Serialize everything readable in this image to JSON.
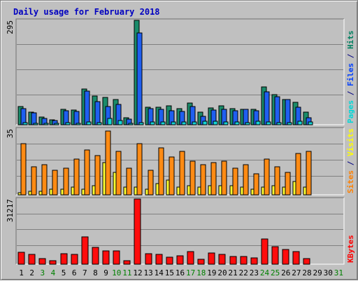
{
  "chart_data": {
    "type": "bar",
    "title": "Daily usage for February 2018",
    "categories": [
      "1",
      "2",
      "3",
      "4",
      "5",
      "6",
      "7",
      "8",
      "9",
      "10",
      "11",
      "12",
      "13",
      "14",
      "15",
      "16",
      "17",
      "18",
      "19",
      "20",
      "21",
      "22",
      "23",
      "24",
      "25",
      "26",
      "27",
      "28",
      "29",
      "30",
      "31"
    ],
    "weekend_days": [
      "3",
      "4",
      "10",
      "11",
      "17",
      "18",
      "24",
      "25",
      "31"
    ],
    "panels": [
      {
        "id": "hits",
        "max_label": "295",
        "ymax": 295,
        "side_labels": [
          {
            "text": "Pages",
            "color": "#00d8d8"
          },
          {
            "text": " / ",
            "color": "#000080"
          },
          {
            "text": "Files",
            "color": "#0040ff"
          },
          {
            "text": " / ",
            "color": "#000080"
          },
          {
            "text": "Hits",
            "color": "#008060"
          }
        ],
        "series": [
          {
            "name": "Hits",
            "color": "#1a8b6a",
            "values": [
              52,
              35,
              22,
              14,
              43,
              42,
              101,
              82,
              78,
              71,
              20,
              295,
              50,
              50,
              53,
              46,
              61,
              36,
              48,
              54,
              46,
              44,
              44,
              106,
              85,
              72,
              63,
              35,
              0,
              0,
              0
            ]
          },
          {
            "name": "Files",
            "color": "#1f5ff0",
            "values": [
              46,
              34,
              17,
              11,
              39,
              37,
              95,
              66,
              51,
              58,
              16,
              260,
              45,
              43,
              40,
              37,
              51,
              23,
              42,
              44,
              40,
              43,
              40,
              93,
              80,
              71,
              50,
              19,
              0,
              0,
              0
            ]
          },
          {
            "name": "Pages",
            "color": "#16d4d4",
            "values": [
              5,
              3,
              3,
              2,
              5,
              4,
              8,
              6,
              18,
              12,
              2,
              6,
              8,
              8,
              7,
              7,
              7,
              9,
              9,
              8,
              7,
              6,
              9,
              7,
              5,
              6,
              9,
              7,
              0,
              0,
              0
            ]
          }
        ]
      },
      {
        "id": "visits",
        "max_label": "35",
        "ymax": 35,
        "side_labels": [
          {
            "text": "Sites",
            "color": "#ff8000"
          },
          {
            "text": " / ",
            "color": "#000080"
          },
          {
            "text": "Visits",
            "color": "#ffff00"
          }
        ],
        "series": [
          {
            "name": "Visits",
            "color": "#ffff30",
            "values": [
              1,
              2,
              2,
              3,
              3,
              4,
              3,
              5,
              17,
              12,
              4,
              4,
              3,
              6,
              8,
              4,
              5,
              4,
              5,
              5,
              5,
              4,
              3,
              4,
              5,
              4,
              7,
              4,
              0,
              0,
              0
            ]
          },
          {
            "name": "Sites",
            "color": "#ff8b14",
            "values": [
              27,
              15,
              16,
              13,
              14,
              19,
              24,
              21,
              34,
              23,
              14,
              27,
              13,
              25,
              20,
              23,
              18,
              16,
              17,
              18,
              14,
              16,
              11,
              19,
              15,
              12,
              22,
              23,
              0,
              0,
              0
            ]
          }
        ]
      },
      {
        "id": "kbytes",
        "max_label": "31217",
        "ymax": 31217,
        "side_labels": [
          {
            "text": "KBytes",
            "color": "#ff0000"
          }
        ],
        "series": [
          {
            "name": "KBytes",
            "color": "#ff0c0c",
            "values": [
              5700,
              4800,
              2800,
              1600,
              5200,
              4600,
              13100,
              8100,
              6300,
              6300,
              1600,
              31217,
              5200,
              4700,
              3300,
              4100,
              5900,
              2400,
              5500,
              4800,
              3800,
              3700,
              3100,
              12000,
              8400,
              6900,
              5900,
              2800,
              0,
              0,
              0
            ]
          }
        ]
      }
    ],
    "colors": {
      "plot_bg": "#c0c0c0",
      "grid": "#808080",
      "title": "#0000c0",
      "weekday_label": "#000000",
      "weekend_label": "#008000"
    }
  }
}
